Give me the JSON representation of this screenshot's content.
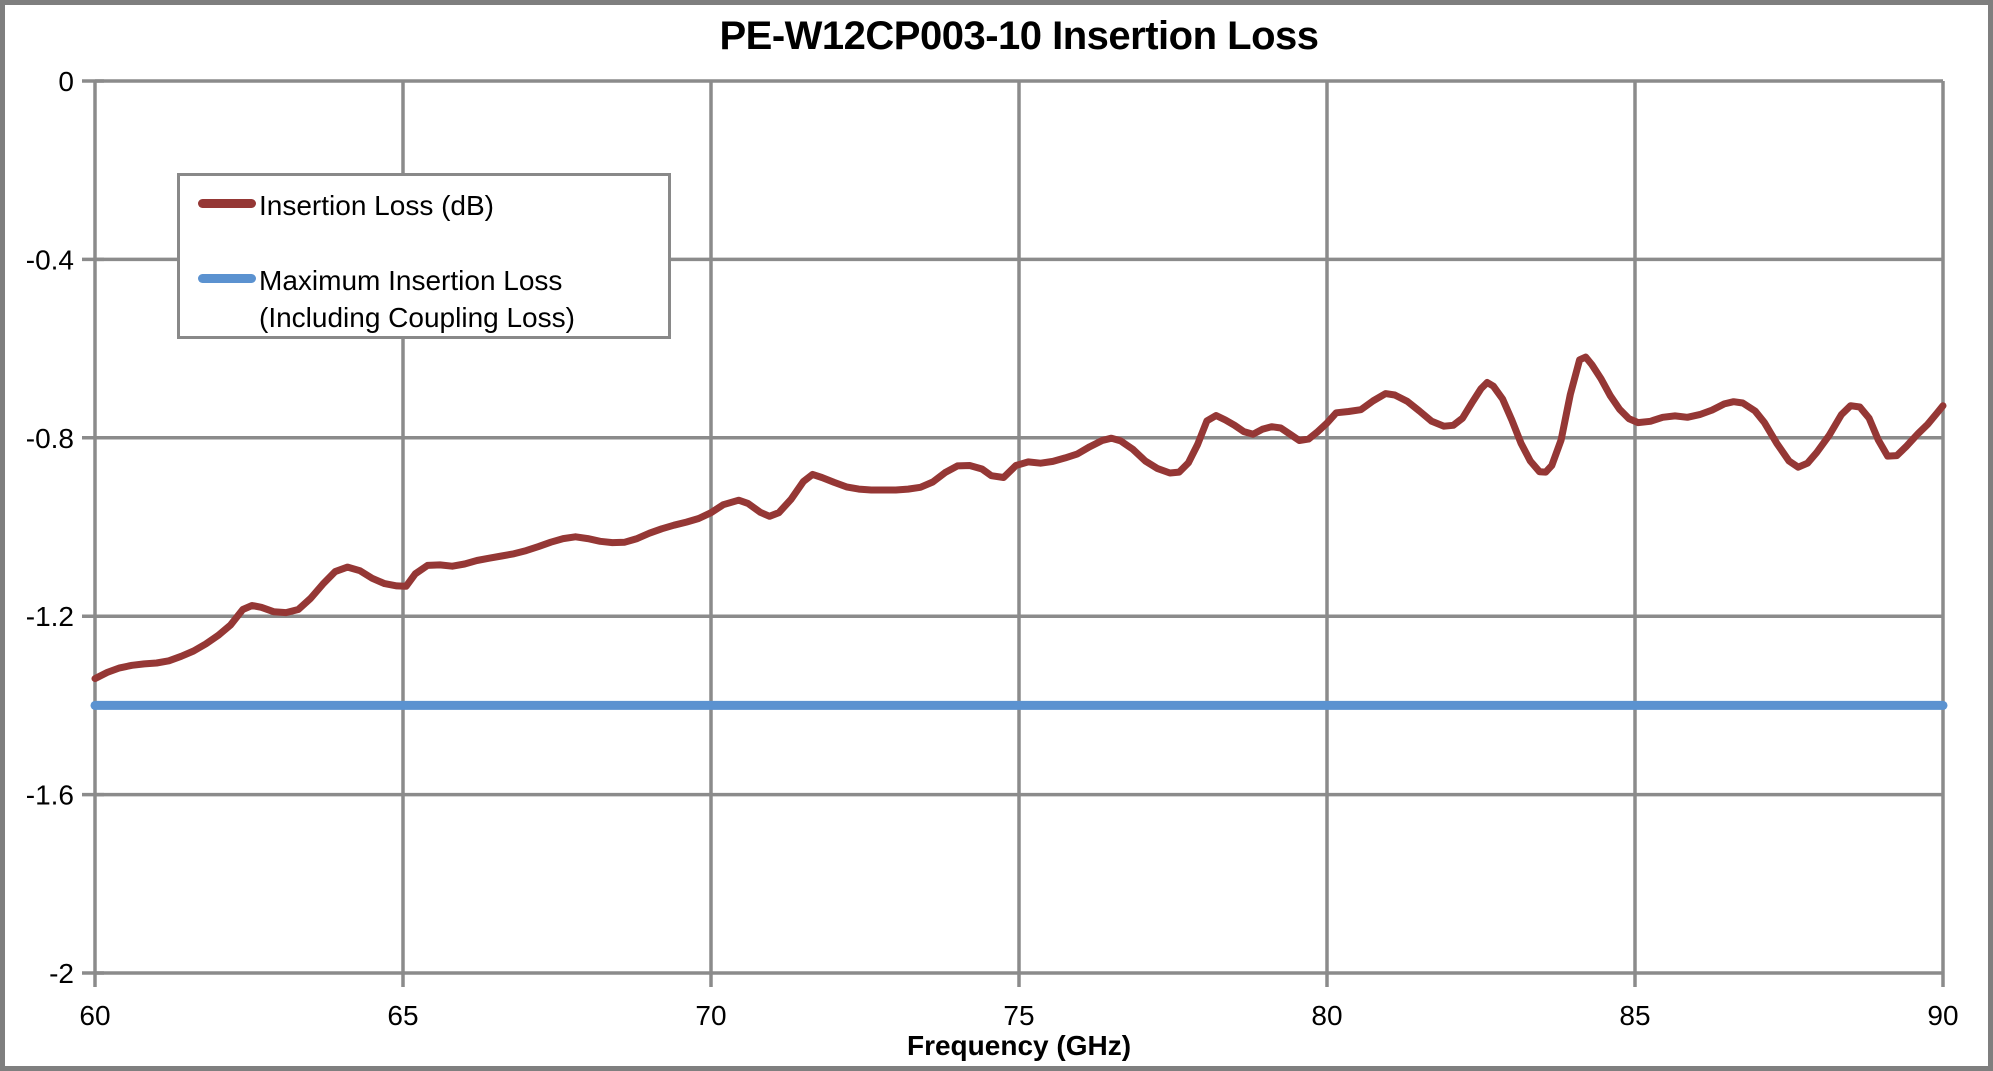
{
  "frame": {
    "background": "#ffffff",
    "border_color": "#7f7f7f"
  },
  "chart_data": {
    "type": "line",
    "title": "PE-W12CP003-10 Insertion Loss",
    "xlabel": "Frequency (GHz)",
    "ylabel": "",
    "xlim": [
      60,
      90
    ],
    "ylim": [
      -2,
      0
    ],
    "x_ticks": [
      60,
      65,
      70,
      75,
      80,
      85,
      90
    ],
    "y_ticks": [
      0,
      -0.4,
      -0.8,
      -1.2,
      -1.6,
      -2
    ],
    "y_tick_labels": [
      "0",
      "-0.4",
      "-0.8",
      "-1.2",
      "-1.6",
      "-2"
    ],
    "grid": true,
    "grid_color": "#8B8B8B",
    "legend_position": "inside-upper-left",
    "series": [
      {
        "name": "Insertion Loss (dB)",
        "color": "#953735",
        "width": 7,
        "points": [
          [
            60.0,
            -1.34
          ],
          [
            60.2,
            -1.326
          ],
          [
            60.4,
            -1.316
          ],
          [
            60.6,
            -1.31
          ],
          [
            60.8,
            -1.307
          ],
          [
            61.0,
            -1.305
          ],
          [
            61.2,
            -1.3
          ],
          [
            61.4,
            -1.29
          ],
          [
            61.6,
            -1.278
          ],
          [
            61.8,
            -1.262
          ],
          [
            62.0,
            -1.243
          ],
          [
            62.2,
            -1.22
          ],
          [
            62.4,
            -1.185
          ],
          [
            62.55,
            -1.176
          ],
          [
            62.7,
            -1.18
          ],
          [
            62.9,
            -1.19
          ],
          [
            63.1,
            -1.192
          ],
          [
            63.3,
            -1.185
          ],
          [
            63.5,
            -1.16
          ],
          [
            63.7,
            -1.128
          ],
          [
            63.9,
            -1.1
          ],
          [
            64.1,
            -1.09
          ],
          [
            64.3,
            -1.098
          ],
          [
            64.5,
            -1.115
          ],
          [
            64.7,
            -1.127
          ],
          [
            64.9,
            -1.132
          ],
          [
            65.05,
            -1.133
          ],
          [
            65.2,
            -1.105
          ],
          [
            65.4,
            -1.086
          ],
          [
            65.6,
            -1.085
          ],
          [
            65.8,
            -1.088
          ],
          [
            66.0,
            -1.083
          ],
          [
            66.2,
            -1.075
          ],
          [
            66.4,
            -1.07
          ],
          [
            66.6,
            -1.065
          ],
          [
            66.8,
            -1.06
          ],
          [
            67.0,
            -1.053
          ],
          [
            67.2,
            -1.044
          ],
          [
            67.4,
            -1.034
          ],
          [
            67.6,
            -1.026
          ],
          [
            67.8,
            -1.022
          ],
          [
            68.0,
            -1.026
          ],
          [
            68.2,
            -1.032
          ],
          [
            68.4,
            -1.035
          ],
          [
            68.6,
            -1.034
          ],
          [
            68.8,
            -1.026
          ],
          [
            69.0,
            -1.014
          ],
          [
            69.2,
            -1.004
          ],
          [
            69.4,
            -0.996
          ],
          [
            69.6,
            -0.989
          ],
          [
            69.8,
            -0.981
          ],
          [
            70.0,
            -0.968
          ],
          [
            70.2,
            -0.95
          ],
          [
            70.45,
            -0.94
          ],
          [
            70.6,
            -0.947
          ],
          [
            70.8,
            -0.967
          ],
          [
            70.95,
            -0.976
          ],
          [
            71.1,
            -0.968
          ],
          [
            71.3,
            -0.938
          ],
          [
            71.5,
            -0.898
          ],
          [
            71.65,
            -0.882
          ],
          [
            71.8,
            -0.889
          ],
          [
            72.0,
            -0.9
          ],
          [
            72.2,
            -0.91
          ],
          [
            72.4,
            -0.915
          ],
          [
            72.6,
            -0.917
          ],
          [
            72.8,
            -0.917
          ],
          [
            73.0,
            -0.917
          ],
          [
            73.2,
            -0.915
          ],
          [
            73.4,
            -0.911
          ],
          [
            73.6,
            -0.899
          ],
          [
            73.8,
            -0.878
          ],
          [
            74.0,
            -0.863
          ],
          [
            74.2,
            -0.862
          ],
          [
            74.4,
            -0.87
          ],
          [
            74.55,
            -0.885
          ],
          [
            74.75,
            -0.889
          ],
          [
            74.95,
            -0.862
          ],
          [
            75.15,
            -0.854
          ],
          [
            75.35,
            -0.857
          ],
          [
            75.55,
            -0.853
          ],
          [
            75.75,
            -0.845
          ],
          [
            75.95,
            -0.836
          ],
          [
            76.15,
            -0.82
          ],
          [
            76.35,
            -0.806
          ],
          [
            76.5,
            -0.801
          ],
          [
            76.65,
            -0.807
          ],
          [
            76.85,
            -0.826
          ],
          [
            77.05,
            -0.852
          ],
          [
            77.25,
            -0.869
          ],
          [
            77.45,
            -0.879
          ],
          [
            77.6,
            -0.877
          ],
          [
            77.75,
            -0.856
          ],
          [
            77.9,
            -0.815
          ],
          [
            78.05,
            -0.762
          ],
          [
            78.2,
            -0.75
          ],
          [
            78.35,
            -0.76
          ],
          [
            78.5,
            -0.772
          ],
          [
            78.65,
            -0.786
          ],
          [
            78.8,
            -0.792
          ],
          [
            78.95,
            -0.781
          ],
          [
            79.1,
            -0.775
          ],
          [
            79.25,
            -0.778
          ],
          [
            79.4,
            -0.792
          ],
          [
            79.55,
            -0.806
          ],
          [
            79.7,
            -0.803
          ],
          [
            79.85,
            -0.786
          ],
          [
            80.0,
            -0.767
          ],
          [
            80.15,
            -0.744
          ],
          [
            80.35,
            -0.741
          ],
          [
            80.55,
            -0.737
          ],
          [
            80.75,
            -0.717
          ],
          [
            80.95,
            -0.701
          ],
          [
            81.1,
            -0.704
          ],
          [
            81.3,
            -0.718
          ],
          [
            81.5,
            -0.74
          ],
          [
            81.7,
            -0.763
          ],
          [
            81.9,
            -0.774
          ],
          [
            82.05,
            -0.772
          ],
          [
            82.2,
            -0.756
          ],
          [
            82.35,
            -0.722
          ],
          [
            82.5,
            -0.69
          ],
          [
            82.6,
            -0.676
          ],
          [
            82.7,
            -0.684
          ],
          [
            82.85,
            -0.713
          ],
          [
            83.0,
            -0.76
          ],
          [
            83.15,
            -0.812
          ],
          [
            83.3,
            -0.852
          ],
          [
            83.45,
            -0.876
          ],
          [
            83.55,
            -0.877
          ],
          [
            83.65,
            -0.862
          ],
          [
            83.8,
            -0.805
          ],
          [
            83.95,
            -0.703
          ],
          [
            84.1,
            -0.625
          ],
          [
            84.2,
            -0.619
          ],
          [
            84.3,
            -0.636
          ],
          [
            84.45,
            -0.668
          ],
          [
            84.6,
            -0.706
          ],
          [
            84.75,
            -0.736
          ],
          [
            84.9,
            -0.757
          ],
          [
            85.05,
            -0.766
          ],
          [
            85.25,
            -0.763
          ],
          [
            85.45,
            -0.754
          ],
          [
            85.65,
            -0.751
          ],
          [
            85.85,
            -0.754
          ],
          [
            86.05,
            -0.748
          ],
          [
            86.25,
            -0.738
          ],
          [
            86.45,
            -0.724
          ],
          [
            86.6,
            -0.719
          ],
          [
            86.75,
            -0.722
          ],
          [
            86.95,
            -0.74
          ],
          [
            87.1,
            -0.766
          ],
          [
            87.3,
            -0.812
          ],
          [
            87.5,
            -0.852
          ],
          [
            87.65,
            -0.866
          ],
          [
            87.8,
            -0.857
          ],
          [
            87.95,
            -0.833
          ],
          [
            88.15,
            -0.795
          ],
          [
            88.35,
            -0.748
          ],
          [
            88.5,
            -0.728
          ],
          [
            88.65,
            -0.731
          ],
          [
            88.8,
            -0.756
          ],
          [
            88.95,
            -0.805
          ],
          [
            89.1,
            -0.841
          ],
          [
            89.25,
            -0.84
          ],
          [
            89.4,
            -0.82
          ],
          [
            89.6,
            -0.79
          ],
          [
            89.75,
            -0.77
          ],
          [
            89.9,
            -0.745
          ],
          [
            90.0,
            -0.728
          ]
        ]
      },
      {
        "name": "Maximum Insertion Loss (Including Coupling Loss)",
        "color": "#5B92D0",
        "width": 9,
        "points": [
          [
            60,
            -1.4
          ],
          [
            90,
            -1.4
          ]
        ]
      }
    ]
  }
}
